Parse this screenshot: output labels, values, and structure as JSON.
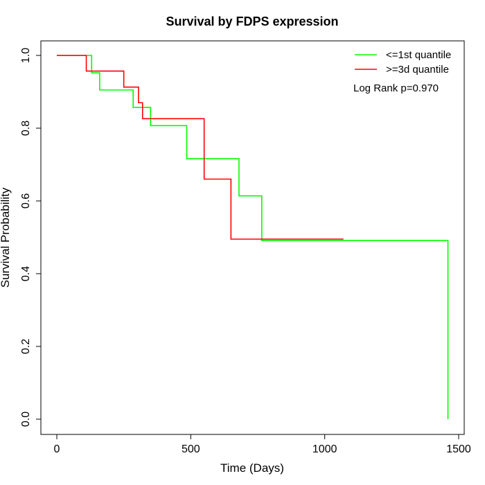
{
  "chart_data": {
    "type": "line",
    "title": "Survival by FDPS expression",
    "xlabel": "Time (Days)",
    "ylabel": "Survival Probability",
    "xlim": [
      0,
      1500
    ],
    "ylim": [
      0,
      1.0
    ],
    "x_ticks": [
      "0",
      "500",
      "1000",
      "1500"
    ],
    "y_ticks": [
      "0.0",
      "0.2",
      "0.4",
      "0.6",
      "0.8",
      "1.0"
    ],
    "legend_position": "top-right",
    "annotation": "Log Rank p=0.970",
    "series": [
      {
        "name": "<=1st quantile",
        "color": "#00ff00",
        "step": true,
        "x": [
          0,
          130,
          160,
          285,
          350,
          485,
          680,
          765,
          1460,
          1460
        ],
        "y": [
          1.0,
          0.952,
          0.905,
          0.857,
          0.807,
          0.716,
          0.614,
          0.491,
          0.491,
          0.0
        ]
      },
      {
        "name": ">=3d quantile",
        "color": "#ff0000",
        "step": true,
        "x": [
          0,
          110,
          250,
          305,
          320,
          550,
          650,
          1070
        ],
        "y": [
          1.0,
          0.957,
          0.913,
          0.87,
          0.826,
          0.66,
          0.495,
          0.495
        ]
      }
    ]
  }
}
